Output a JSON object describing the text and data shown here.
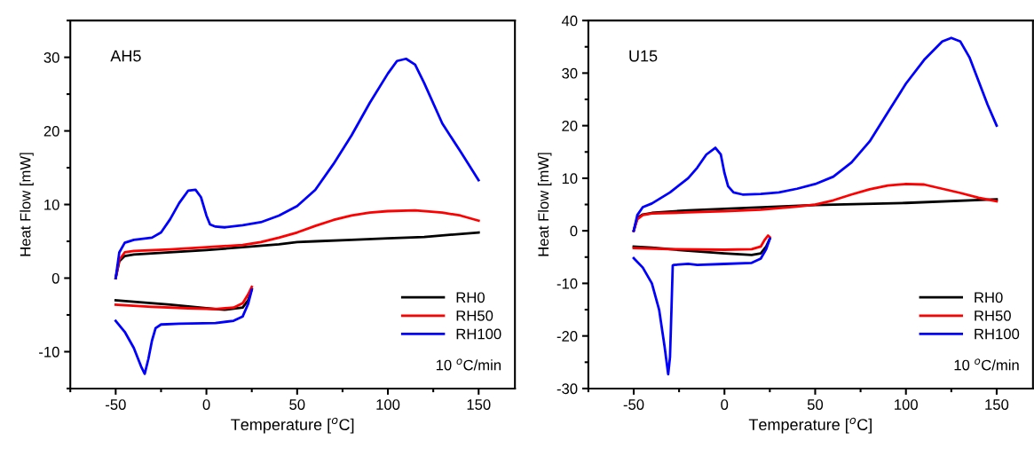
{
  "chart_data": [
    {
      "type": "line",
      "xlabel": "Temperature [$^{o}$C]",
      "ylabel": "Heat Flow [mW]",
      "xlim": [
        -75,
        170
      ],
      "xticks": [
        -50,
        0,
        50,
        100,
        150
      ],
      "ylim": [
        -15,
        35
      ],
      "yticks": [
        -10,
        0,
        10,
        20,
        30
      ],
      "grid": false,
      "legend": "bottom right",
      "line_style": "solid",
      "marker": "none",
      "annotations": [
        "AH5",
        "10 $^{o}$C/min"
      ],
      "series": [
        {
          "name": "RH0",
          "color": "#000000",
          "x": [
            -50,
            -48,
            -45,
            -40,
            -20,
            0,
            20,
            40,
            50,
            60,
            80,
            100,
            120,
            150,
            null,
            25,
            23,
            20,
            10,
            0,
            -20,
            -40,
            -50
          ],
          "values": [
            0,
            2.3,
            3.0,
            3.2,
            3.5,
            3.8,
            4.2,
            4.6,
            4.9,
            5.0,
            5.2,
            5.4,
            5.6,
            6.2,
            null,
            -1.5,
            -3.0,
            -4.0,
            -4.3,
            -4.1,
            -3.6,
            -3.2,
            -3.0
          ]
        },
        {
          "name": "RH50",
          "color": "#ff0000",
          "x": [
            -50,
            -48,
            -45,
            -40,
            -20,
            0,
            20,
            30,
            40,
            50,
            60,
            70,
            80,
            90,
            100,
            115,
            130,
            140,
            150,
            null,
            25,
            23,
            20,
            15,
            5,
            -10,
            -30,
            -50
          ],
          "values": [
            0,
            2.5,
            3.5,
            3.7,
            3.9,
            4.2,
            4.5,
            4.9,
            5.5,
            6.2,
            7.1,
            7.9,
            8.5,
            8.9,
            9.1,
            9.2,
            8.9,
            8.5,
            7.8,
            null,
            -1.2,
            -2.2,
            -3.4,
            -4.0,
            -4.2,
            -4.1,
            -3.9,
            -3.6
          ]
        },
        {
          "name": "RH100",
          "color": "#0000ff",
          "x": [
            -50,
            -48,
            -45,
            -40,
            -30,
            -25,
            -20,
            -15,
            -10,
            -6,
            -3,
            0,
            2,
            5,
            10,
            20,
            30,
            40,
            50,
            60,
            70,
            80,
            90,
            100,
            105,
            110,
            115,
            120,
            130,
            140,
            150,
            null,
            25,
            23,
            20,
            15,
            5,
            -15,
            -25,
            -28,
            -30,
            -32,
            -34,
            -36,
            -40,
            -45,
            -50
          ],
          "values": [
            0,
            3.5,
            4.8,
            5.2,
            5.5,
            6.2,
            8.0,
            10.2,
            11.9,
            12.0,
            11.0,
            8.5,
            7.3,
            7.0,
            6.9,
            7.2,
            7.6,
            8.5,
            9.8,
            12.0,
            15.5,
            19.4,
            23.8,
            27.8,
            29.5,
            29.8,
            29.0,
            26.5,
            21.0,
            17.2,
            13.3,
            null,
            -1.6,
            -3.5,
            -5.2,
            -5.8,
            -6.1,
            -6.2,
            -6.3,
            -6.8,
            -8.5,
            -11.0,
            -13.0,
            -12.0,
            -9.5,
            -7.3,
            -5.8
          ]
        }
      ]
    },
    {
      "type": "line",
      "xlabel": "Temperature [$^{o}$C]",
      "ylabel": "Heat Flow [mW]",
      "xlim": [
        -75,
        170
      ],
      "xticks": [
        -50,
        0,
        50,
        100,
        150
      ],
      "ylim": [
        -30,
        40
      ],
      "yticks": [
        -30,
        -20,
        -10,
        0,
        10,
        20,
        30,
        40
      ],
      "grid": false,
      "legend": "bottom right",
      "line_style": "solid",
      "marker": "none",
      "annotations": [
        "U15",
        "10 $^{o}$C/min"
      ],
      "series": [
        {
          "name": "RH0",
          "color": "#000000",
          "x": [
            -50,
            -48,
            -45,
            -40,
            -20,
            0,
            50,
            100,
            150,
            null,
            25,
            23,
            20,
            15,
            0,
            -20,
            -40,
            -50
          ],
          "values": [
            0,
            2.5,
            3.1,
            3.4,
            3.9,
            4.2,
            4.9,
            5.3,
            6.0,
            null,
            -1.5,
            -3.0,
            -4.3,
            -4.6,
            -4.3,
            -3.8,
            -3.2,
            -3.0
          ]
        },
        {
          "name": "RH50",
          "color": "#ff0000",
          "x": [
            -50,
            -48,
            -45,
            -40,
            -20,
            0,
            20,
            40,
            50,
            60,
            70,
            80,
            90,
            100,
            110,
            120,
            130,
            140,
            150,
            null,
            25,
            24,
            22,
            20,
            15,
            0,
            -30,
            -50
          ],
          "values": [
            0,
            2.2,
            3.0,
            3.3,
            3.5,
            3.7,
            4.0,
            4.6,
            5.0,
            5.8,
            6.9,
            7.9,
            8.6,
            8.9,
            8.8,
            8.0,
            7.2,
            6.3,
            5.6,
            null,
            -1.2,
            -0.9,
            -1.8,
            -3.0,
            -3.5,
            -3.6,
            -3.5,
            -3.3
          ]
        },
        {
          "name": "RH100",
          "color": "#0000ff",
          "x": [
            -50,
            -48,
            -45,
            -40,
            -30,
            -20,
            -15,
            -10,
            -5,
            -2,
            0,
            2,
            5,
            10,
            20,
            30,
            40,
            50,
            60,
            70,
            80,
            90,
            100,
            110,
            120,
            125,
            130,
            135,
            140,
            145,
            150,
            null,
            25,
            23,
            20,
            15,
            0,
            -15,
            -20,
            -28,
            -28.5,
            -29.2,
            -30,
            -31,
            -33,
            -36,
            -40,
            -45,
            -50
          ],
          "values": [
            0,
            3.0,
            4.5,
            5.2,
            7.3,
            10.0,
            12.0,
            14.5,
            15.8,
            14.5,
            11.0,
            8.5,
            7.3,
            6.9,
            7.0,
            7.3,
            8.0,
            8.9,
            10.3,
            13.0,
            17.0,
            22.5,
            28.0,
            32.5,
            36.0,
            36.7,
            36.0,
            33.0,
            28.5,
            24.0,
            20.0,
            null,
            -1.5,
            -3.5,
            -5.3,
            -6.1,
            -6.3,
            -6.5,
            -6.3,
            -6.5,
            -6.6,
            -15.0,
            -24.0,
            -27.3,
            -22.0,
            -15.0,
            -10.0,
            -7.0,
            -5.2
          ]
        }
      ]
    }
  ]
}
